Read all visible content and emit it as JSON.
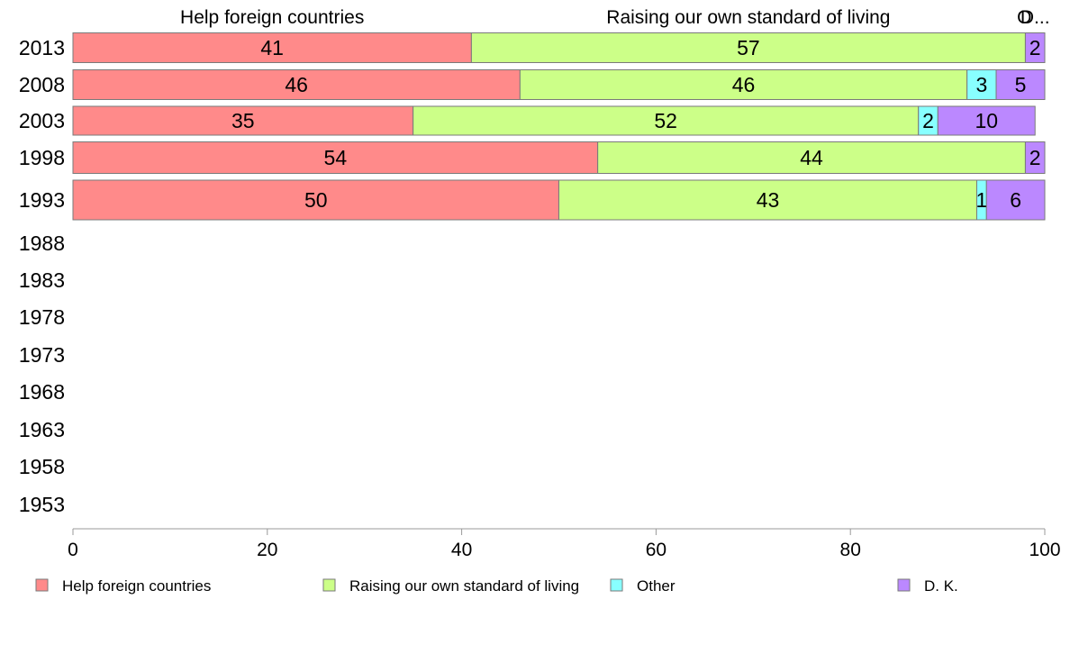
{
  "chart_data": {
    "type": "bar",
    "orientation": "horizontal",
    "stacked": true,
    "categories": [
      "2013",
      "2008",
      "2003",
      "1998",
      "1993",
      "1988",
      "1983",
      "1978",
      "1973",
      "1968",
      "1963",
      "1958",
      "1953"
    ],
    "series": [
      {
        "name": "Help foreign countries",
        "color": "#ff8a8a",
        "values": [
          41,
          46,
          35,
          54,
          50,
          null,
          null,
          null,
          null,
          null,
          null,
          null,
          null
        ]
      },
      {
        "name": "Raising our own standard of living",
        "color": "#ccff88",
        "values": [
          57,
          46,
          52,
          44,
          43,
          null,
          null,
          null,
          null,
          null,
          null,
          null,
          null
        ]
      },
      {
        "name": "Other",
        "color": "#88ffff",
        "values": [
          0,
          3,
          2,
          0,
          1,
          null,
          null,
          null,
          null,
          null,
          null,
          null,
          null
        ]
      },
      {
        "name": "D. K.",
        "color": "#bb88ff",
        "values": [
          2,
          5,
          10,
          2,
          6,
          null,
          null,
          null,
          null,
          null,
          null,
          null,
          null
        ]
      }
    ],
    "data_labels": [
      [
        "41",
        "57",
        "",
        "2"
      ],
      [
        "46",
        "46",
        "3",
        "5"
      ],
      [
        "35",
        "52",
        "2",
        "10"
      ],
      [
        "54",
        "44",
        "",
        "2"
      ],
      [
        "50",
        "43",
        "1",
        "6"
      ]
    ],
    "top_labels": [
      {
        "text": "Help foreign countries",
        "value": 20.5
      },
      {
        "text": "Raising our own standard of living",
        "value": 69.5
      },
      {
        "text": "O",
        "value": 97.9
      },
      {
        "text": "D...",
        "value": 99
      }
    ],
    "xlim": [
      0,
      100
    ],
    "xticks": [
      "0",
      "20",
      "40",
      "60",
      "80",
      "100"
    ],
    "grid": false,
    "legend_position": "bottom"
  }
}
